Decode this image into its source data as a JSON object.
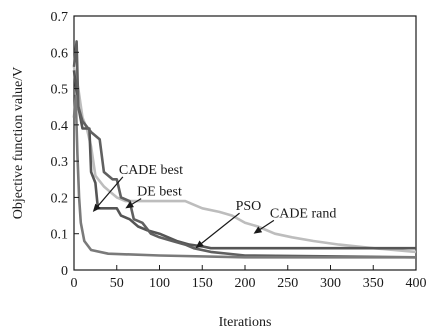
{
  "chart_data": {
    "type": "line",
    "xlabel": "Iterations",
    "ylabel": "Objective function value/V",
    "xlim": [
      0,
      400
    ],
    "ylim": [
      0,
      0.7
    ],
    "x_ticks": [
      0,
      50,
      100,
      150,
      200,
      250,
      300,
      350,
      400
    ],
    "y_ticks": [
      0,
      0.1,
      0.2,
      0.3,
      0.4,
      0.5,
      0.6,
      0.7
    ],
    "x_tick_labels": [
      "0",
      "50",
      "100",
      "150",
      "200",
      "250",
      "300",
      "350",
      "400"
    ],
    "y_tick_labels": [
      "0",
      "0.1",
      "0.2",
      "0.3",
      "0.4",
      "0.5",
      "0.6",
      "0.7"
    ],
    "grid": false,
    "series": [
      {
        "name": "CADE best",
        "color": "#7a7a7a",
        "points": [
          [
            0,
            0.42
          ],
          [
            2,
            0.48
          ],
          [
            4,
            0.32
          ],
          [
            6,
            0.2
          ],
          [
            8,
            0.13
          ],
          [
            12,
            0.08
          ],
          [
            20,
            0.055
          ],
          [
            40,
            0.045
          ],
          [
            100,
            0.04
          ],
          [
            200,
            0.035
          ],
          [
            400,
            0.035
          ]
        ]
      },
      {
        "name": "DE best",
        "color": "#606060",
        "points": [
          [
            0,
            0.56
          ],
          [
            3,
            0.63
          ],
          [
            5,
            0.45
          ],
          [
            10,
            0.41
          ],
          [
            20,
            0.38
          ],
          [
            30,
            0.36
          ],
          [
            35,
            0.27
          ],
          [
            45,
            0.25
          ],
          [
            50,
            0.25
          ],
          [
            55,
            0.2
          ],
          [
            65,
            0.19
          ],
          [
            70,
            0.14
          ],
          [
            80,
            0.13
          ],
          [
            90,
            0.1
          ],
          [
            100,
            0.09
          ],
          [
            115,
            0.08
          ],
          [
            130,
            0.07
          ],
          [
            140,
            0.06
          ],
          [
            160,
            0.05
          ],
          [
            200,
            0.04
          ],
          [
            400,
            0.035
          ]
        ]
      },
      {
        "name": "PSO",
        "color": "#555555",
        "points": [
          [
            0,
            0.55
          ],
          [
            5,
            0.45
          ],
          [
            10,
            0.39
          ],
          [
            18,
            0.39
          ],
          [
            20,
            0.27
          ],
          [
            25,
            0.24
          ],
          [
            28,
            0.17
          ],
          [
            40,
            0.17
          ],
          [
            50,
            0.17
          ],
          [
            55,
            0.15
          ],
          [
            65,
            0.14
          ],
          [
            75,
            0.12
          ],
          [
            85,
            0.11
          ],
          [
            100,
            0.1
          ],
          [
            110,
            0.09
          ],
          [
            120,
            0.08
          ],
          [
            135,
            0.07
          ],
          [
            150,
            0.065
          ],
          [
            160,
            0.06
          ],
          [
            400,
            0.06
          ]
        ]
      },
      {
        "name": "CADE rand",
        "color": "#bdbdbd",
        "points": [
          [
            0,
            0.56
          ],
          [
            5,
            0.5
          ],
          [
            10,
            0.42
          ],
          [
            15,
            0.39
          ],
          [
            20,
            0.34
          ],
          [
            25,
            0.26
          ],
          [
            35,
            0.23
          ],
          [
            40,
            0.22
          ],
          [
            50,
            0.2
          ],
          [
            60,
            0.19
          ],
          [
            130,
            0.19
          ],
          [
            140,
            0.18
          ],
          [
            150,
            0.17
          ],
          [
            170,
            0.16
          ],
          [
            185,
            0.15
          ],
          [
            200,
            0.13
          ],
          [
            215,
            0.12
          ],
          [
            235,
            0.1
          ],
          [
            255,
            0.09
          ],
          [
            280,
            0.08
          ],
          [
            310,
            0.07
          ],
          [
            350,
            0.06
          ],
          [
            400,
            0.05
          ]
        ]
      }
    ],
    "annotations": [
      {
        "text": "CADE best",
        "text_x": 90,
        "text_y": 0.265,
        "arrow_to": [
          22,
          0.16
        ]
      },
      {
        "text": "DE best",
        "text_x": 100,
        "text_y": 0.205,
        "arrow_to": [
          60,
          0.17
        ]
      },
      {
        "text": "PSO",
        "text_x": 204,
        "text_y": 0.165,
        "arrow_to": [
          142,
          0.06
        ]
      },
      {
        "text": "CADE rand",
        "text_x": 268,
        "text_y": 0.145,
        "arrow_to": [
          210,
          0.1
        ]
      }
    ]
  }
}
